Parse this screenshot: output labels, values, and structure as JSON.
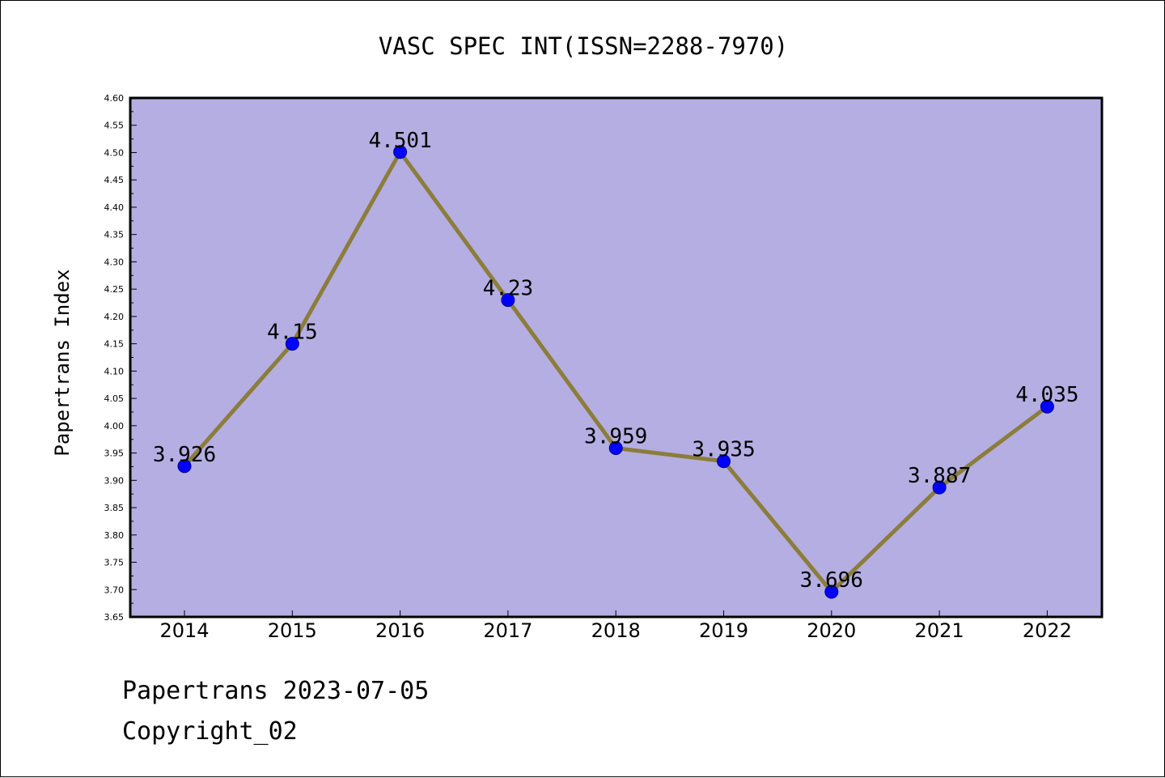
{
  "chart_data": {
    "type": "line",
    "title": "VASC SPEC INT(ISSN=2288-7970)",
    "xlabel": "",
    "ylabel": "Papertrans Index",
    "categories": [
      "2014",
      "2015",
      "2016",
      "2017",
      "2018",
      "2019",
      "2020",
      "2021",
      "2022"
    ],
    "series": [
      {
        "values": [
          3.926,
          4.15,
          4.501,
          4.23,
          3.959,
          3.935,
          3.696,
          3.887,
          4.035
        ]
      }
    ],
    "data_labels": [
      "3.926",
      "4.15",
      "4.501",
      "4.23",
      "3.959",
      "3.935",
      "3.696",
      "3.887",
      "4.035"
    ],
    "ylim": [
      3.65,
      4.6
    ],
    "yticks": [
      "3.65",
      "3.70",
      "3.75",
      "3.80",
      "3.85",
      "3.90",
      "3.95",
      "4.00",
      "4.05",
      "4.10",
      "4.15",
      "4.20",
      "4.25",
      "4.30",
      "4.35",
      "4.40",
      "4.45",
      "4.50",
      "4.55",
      "4.60"
    ],
    "grid": false,
    "colors": {
      "plot_background": "#b5aee2",
      "line": "#8b7d3a",
      "marker": "#0000ff"
    }
  },
  "footer": {
    "date_line": "Papertrans 2023-07-05",
    "copyright_line": "Copyright_02"
  }
}
